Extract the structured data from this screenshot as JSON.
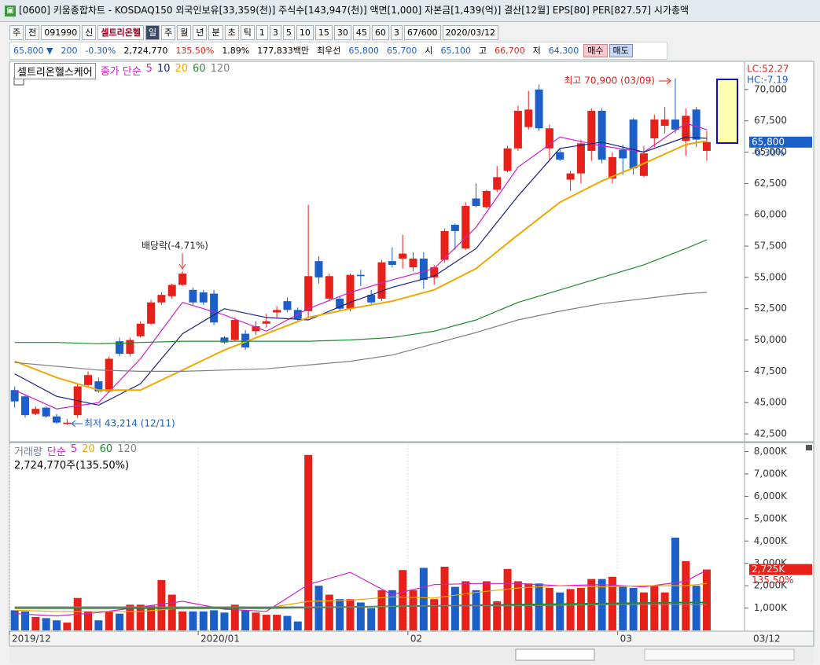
{
  "window": {
    "title": "[0600] 키움종합차트 - KOSDAQ150 외국인보유[33,359(천)] 주식수[143,947(천)] 액면[1,000] 자본금[1,439(억)] 결산[12월] EPS[80] PER[827.57] 시가총액"
  },
  "toolbar": {
    "row1": [
      "주",
      "전",
      "091990",
      "신",
      "셀트리온헬",
      "일",
      "주",
      "월",
      "년",
      "분",
      "초",
      "틱",
      "1",
      "3",
      "5",
      "10",
      "15",
      "30",
      "45",
      "60",
      "3",
      "67/600",
      "2020/03/12"
    ],
    "row2": [
      "65,800 ▼",
      "200",
      "-0.30%",
      "2,724,770",
      "135.50%",
      "1.89%",
      "177,833백만",
      "최우선",
      "65,800",
      "65,700",
      "시",
      "65,100",
      "고",
      "66,700",
      "저",
      "64,300",
      "매수",
      "매도"
    ]
  },
  "chart_data": [
    {
      "type": "candlestick",
      "title": "셀트리온헬스케어",
      "ma_label": "종가 단순",
      "up_color": "#e8201a",
      "down_color": "#1c5fc8",
      "open": [
        46000,
        45500,
        44100,
        44600,
        43900,
        43300,
        44000,
        46400,
        46700,
        45900,
        49900,
        48900,
        50300,
        51300,
        53000,
        53500,
        54400,
        54000,
        53800,
        53700,
        50200,
        50000,
        50500,
        50700,
        51300,
        52200,
        53100,
        52400,
        52300,
        56300,
        53300,
        53300,
        52500,
        55200,
        53600,
        53300,
        56300,
        56500,
        55800,
        56500,
        55000,
        56400,
        59200,
        57300,
        61300,
        60600,
        62000,
        63500,
        65300,
        67000,
        70000,
        65300,
        65000,
        62800,
        63300,
        65100,
        68300,
        62900,
        65200,
        67600,
        63100,
        66100,
        67100,
        67600,
        65900,
        68400,
        65100
      ],
      "high": [
        46300,
        45600,
        44700,
        44700,
        44100,
        43700,
        46500,
        47500,
        47000,
        48700,
        50200,
        50200,
        51500,
        53200,
        53800,
        54500,
        55500,
        54200,
        54000,
        54000,
        50300,
        51800,
        50800,
        51500,
        52100,
        52700,
        53400,
        52600,
        60800,
        56700,
        55300,
        53500,
        55300,
        55600,
        54000,
        56400,
        57400,
        58400,
        57000,
        57000,
        56000,
        58900,
        59300,
        61000,
        62500,
        62000,
        63900,
        65500,
        68700,
        69900,
        70400,
        67200,
        65300,
        63500,
        66000,
        68500,
        68500,
        65000,
        65600,
        67700,
        65500,
        68000,
        68600,
        70900,
        68500,
        68600,
        66700
      ],
      "low": [
        44600,
        43800,
        44000,
        43800,
        43300,
        43214,
        43800,
        46200,
        45800,
        45800,
        48700,
        48700,
        50200,
        51200,
        52800,
        53300,
        54300,
        52800,
        52800,
        51200,
        49700,
        49900,
        49200,
        50400,
        51000,
        51800,
        52200,
        51500,
        51700,
        54500,
        53100,
        52300,
        52300,
        54300,
        52800,
        53100,
        55800,
        55700,
        55500,
        54100,
        54400,
        56200,
        57200,
        57200,
        60600,
        60500,
        61800,
        63400,
        65100,
        66800,
        66700,
        64300,
        64300,
        61900,
        62500,
        64300,
        64100,
        62500,
        63200,
        63200,
        63000,
        65400,
        66500,
        66500,
        64700,
        65400,
        64300
      ],
      "close": [
        45100,
        44000,
        44500,
        43900,
        43400,
        43400,
        46300,
        47200,
        45900,
        48500,
        48900,
        50000,
        51300,
        53000,
        53600,
        54400,
        55300,
        53000,
        53000,
        51400,
        49800,
        51600,
        49400,
        51100,
        51500,
        52400,
        52400,
        51700,
        55100,
        55000,
        55100,
        52500,
        55200,
        55100,
        53000,
        56200,
        56000,
        56900,
        56500,
        54800,
        55800,
        58700,
        58700,
        60700,
        60700,
        61900,
        63000,
        65300,
        68300,
        68400,
        66900,
        66900,
        64400,
        63300,
        65700,
        68300,
        64400,
        64600,
        64500,
        63700,
        64900,
        67600,
        67600,
        66800,
        67900,
        66000,
        65800
      ],
      "series": [
        {
          "name": "5",
          "color": "#d020c8",
          "x": [
            0,
            4,
            8,
            12,
            16,
            20,
            24,
            28,
            32,
            36,
            40,
            44,
            48,
            52,
            56,
            60,
            64,
            66
          ],
          "values": [
            46000,
            44500,
            45000,
            48500,
            53000,
            52000,
            50700,
            52500,
            53800,
            54800,
            55700,
            59000,
            63800,
            66200,
            65500,
            65000,
            67300,
            66800
          ]
        },
        {
          "name": "10",
          "color": "#1a237e",
          "x": [
            0,
            4,
            8,
            12,
            16,
            20,
            24,
            28,
            32,
            36,
            40,
            44,
            48,
            52,
            56,
            60,
            64,
            66
          ],
          "values": [
            47300,
            45500,
            44800,
            46500,
            50500,
            52500,
            51800,
            51600,
            53000,
            54200,
            55100,
            57300,
            61500,
            65300,
            65800,
            65000,
            66200,
            66100
          ]
        },
        {
          "name": "20",
          "color": "#f0a800",
          "x": [
            0,
            4,
            8,
            12,
            16,
            20,
            24,
            28,
            32,
            36,
            40,
            44,
            48,
            52,
            56,
            60,
            64,
            66
          ],
          "values": [
            48300,
            47000,
            46000,
            46000,
            47600,
            49200,
            50500,
            51800,
            52500,
            53100,
            54000,
            55700,
            58400,
            61000,
            62700,
            64100,
            65600,
            65900
          ]
        },
        {
          "name": "60",
          "color": "#1e8a2e",
          "x": [
            0,
            4,
            8,
            12,
            16,
            20,
            24,
            28,
            32,
            36,
            40,
            44,
            48,
            52,
            56,
            60,
            64,
            66
          ],
          "values": [
            49800,
            49800,
            49700,
            49800,
            49900,
            49900,
            49900,
            49900,
            50000,
            50200,
            50700,
            51600,
            53000,
            54000,
            55000,
            56000,
            57300,
            58000
          ]
        },
        {
          "name": "120",
          "color": "#808080",
          "x": [
            0,
            4,
            8,
            12,
            16,
            20,
            24,
            28,
            32,
            36,
            40,
            44,
            48,
            52,
            56,
            60,
            64,
            66
          ],
          "values": [
            48200,
            47900,
            47600,
            47500,
            47500,
            47600,
            47700,
            48000,
            48300,
            48800,
            49700,
            50600,
            51600,
            52300,
            52900,
            53300,
            53700,
            53800
          ]
        }
      ],
      "xlim": [
        -0.5,
        69.6
      ],
      "ylim": [
        42000,
        72000
      ],
      "yticks": [
        {
          "value": 42500,
          "label": "42,500"
        },
        {
          "value": 45000,
          "label": "45,000"
        },
        {
          "value": 47500,
          "label": "47,500"
        },
        {
          "value": 50000,
          "label": "50,000"
        },
        {
          "value": 52500,
          "label": "52,500"
        },
        {
          "value": 55000,
          "label": "55,000"
        },
        {
          "value": 57500,
          "label": "57,500"
        },
        {
          "value": 60000,
          "label": "60,000"
        },
        {
          "value": 62500,
          "label": "62,500"
        },
        {
          "value": 65000,
          "label": "65,000"
        },
        {
          "value": 67500,
          "label": "67,500"
        },
        {
          "value": 70000,
          "label": "70,000"
        }
      ],
      "annotations": [
        "배당락(-4.71%)",
        "최저 43,214 (12/11)",
        "최고 70,900 (03/09)"
      ],
      "range_labels": [
        "LC:52.27",
        "HC:-7.19"
      ],
      "current": {
        "value": 65800,
        "label": "65,800"
      },
      "change_label": "-0.30%"
    },
    {
      "type": "bar",
      "title": "거래량",
      "ma_label": "단순",
      "summary": "2,724,770주(135.50%)",
      "values": [
        900,
        850,
        600,
        550,
        450,
        350,
        1450,
        850,
        450,
        850,
        750,
        1150,
        1150,
        1100,
        2250,
        1600,
        850,
        850,
        850,
        900,
        800,
        1150,
        900,
        800,
        700,
        700,
        650,
        400,
        7850,
        2000,
        1600,
        1400,
        1400,
        1250,
        1000,
        1800,
        1800,
        2700,
        1800,
        2800,
        1400,
        2850,
        1950,
        2200,
        1800,
        2200,
        1300,
        2750,
        2200,
        2100,
        2100,
        1900,
        1700,
        1850,
        1900,
        2300,
        2300,
        2400,
        1950,
        1900,
        1700,
        2000,
        1700,
        4150,
        3100,
        2000,
        2725
      ],
      "series": [
        {
          "name": "5",
          "color": "#d020c8",
          "x": [
            0,
            4,
            8,
            12,
            16,
            20,
            24,
            28,
            32,
            36,
            40,
            44,
            48,
            52,
            56,
            60,
            64,
            66
          ],
          "values": [
            750,
            650,
            800,
            1050,
            1300,
            950,
            850,
            2050,
            2600,
            1600,
            2050,
            2100,
            2100,
            2000,
            2050,
            1950,
            2200,
            2700
          ]
        },
        {
          "name": "20",
          "color": "#f0a800",
          "x": [
            0,
            4,
            8,
            12,
            16,
            20,
            24,
            28,
            32,
            36,
            40,
            44,
            48,
            52,
            56,
            60,
            64,
            66
          ],
          "values": [
            900,
            850,
            850,
            850,
            1000,
            1050,
            1000,
            1300,
            1350,
            1500,
            1450,
            1700,
            1900,
            2000,
            1950,
            2000,
            2000,
            2100
          ]
        },
        {
          "name": "60",
          "color": "#1e8a2e",
          "x": [
            0,
            8,
            16,
            24,
            32,
            40,
            48,
            56,
            64,
            66
          ],
          "values": [
            1000,
            1000,
            1000,
            1000,
            1050,
            1100,
            1150,
            1200,
            1250,
            1250
          ]
        },
        {
          "name": "120",
          "color": "#808080",
          "x": [
            0,
            8,
            16,
            24,
            32,
            40,
            48,
            56,
            64,
            66
          ],
          "values": [
            1050,
            1050,
            1050,
            1050,
            1050,
            1100,
            1100,
            1150,
            1150,
            1150
          ]
        }
      ],
      "xlim": [
        -0.5,
        69.6
      ],
      "ylim": [
        0,
        8300
      ],
      "yticks": [
        {
          "value": 1000,
          "label": "1,000K"
        },
        {
          "value": 2000,
          "label": "2,000K"
        },
        {
          "value": 3000,
          "label": "3,000K"
        },
        {
          "value": 4000,
          "label": "4,000K"
        },
        {
          "value": 5000,
          "label": "5,000K"
        },
        {
          "value": 6000,
          "label": "6,000K"
        },
        {
          "value": 7000,
          "label": "7,000K"
        },
        {
          "value": 8000,
          "label": "8,000K"
        }
      ],
      "xticks": [
        {
          "value": -0.5,
          "label": "2019/12"
        },
        {
          "value": 17.5,
          "label": "2020/01"
        },
        {
          "value": 37.5,
          "label": "02"
        },
        {
          "value": 57.5,
          "label": "03"
        }
      ],
      "current": {
        "value": 2725,
        "label": "2,725K"
      },
      "change_label": "135.50%",
      "date_label": "03/12"
    }
  ]
}
